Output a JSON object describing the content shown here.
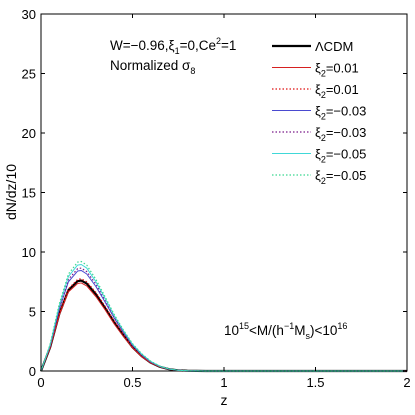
{
  "chart_data": {
    "type": "line",
    "xlabel": "z",
    "ylabel": "dN/dz/10",
    "xlim": [
      0,
      2
    ],
    "ylim": [
      0,
      30
    ],
    "x_ticks": [
      0,
      0.5,
      1,
      1.5,
      2
    ],
    "x_tick_labels": [
      "0",
      "0.5",
      "1",
      "1.5",
      "2"
    ],
    "y_ticks": [
      0,
      5,
      10,
      15,
      20,
      25,
      30
    ],
    "y_tick_labels": [
      "0",
      "5",
      "10",
      "15",
      "20",
      "25",
      "30"
    ],
    "grid": false,
    "legend_position": "top-right",
    "annotation_1": {
      "parts": [
        "W=−0.96,ξ",
        "1",
        "=0,Ce",
        "2",
        "=1"
      ]
    },
    "annotation_2": {
      "parts": [
        "Normalized σ",
        "8"
      ]
    },
    "annotation_3": {
      "parts": [
        "10",
        "15",
        "<M/(h",
        "−1",
        "M",
        "s",
        ")<10",
        "16"
      ]
    },
    "x": [
      0,
      0.05,
      0.1,
      0.15,
      0.2,
      0.22,
      0.25,
      0.3,
      0.35,
      0.4,
      0.45,
      0.5,
      0.55,
      0.6,
      0.65,
      0.7,
      0.75,
      0.8,
      0.9,
      1.0,
      1.2,
      1.5,
      2.0
    ],
    "series": [
      {
        "name": "ΛCDM",
        "color": "#000000",
        "style": "solid",
        "width": 2.2,
        "legend_parts": [
          "ΛCDM"
        ],
        "values": [
          0,
          2.0,
          4.8,
          6.8,
          7.55,
          7.6,
          7.35,
          6.45,
          5.3,
          4.1,
          3.0,
          2.0,
          1.25,
          0.7,
          0.35,
          0.15,
          0.06,
          0.02,
          0,
          0,
          0,
          0,
          0
        ]
      },
      {
        "name": "ξ2=0.01 solid",
        "color": "#d62020",
        "style": "solid",
        "width": 1,
        "legend_parts": [
          "ξ",
          "2",
          "=0.01"
        ],
        "values": [
          0,
          1.95,
          4.7,
          6.65,
          7.35,
          7.4,
          7.15,
          6.25,
          5.15,
          3.95,
          2.9,
          1.95,
          1.2,
          0.68,
          0.33,
          0.14,
          0.05,
          0.02,
          0,
          0,
          0,
          0,
          0
        ]
      },
      {
        "name": "ξ2=0.01 dotted",
        "color": "#e01010",
        "style": "dotted",
        "width": 1.2,
        "legend_parts": [
          "ξ",
          "2",
          "=0.01"
        ],
        "values": [
          0,
          2.0,
          4.85,
          6.9,
          7.7,
          7.75,
          7.5,
          6.6,
          5.45,
          4.2,
          3.1,
          2.05,
          1.3,
          0.72,
          0.36,
          0.15,
          0.06,
          0.02,
          0,
          0,
          0,
          0,
          0
        ]
      },
      {
        "name": "ξ2=−0.03 solid",
        "color": "#4a4ad0",
        "style": "solid",
        "width": 1,
        "legend_parts": [
          "ξ",
          "2",
          "=−0.03"
        ],
        "values": [
          0,
          2.1,
          5.2,
          7.5,
          8.4,
          8.45,
          8.15,
          7.1,
          5.8,
          4.45,
          3.25,
          2.15,
          1.35,
          0.75,
          0.37,
          0.16,
          0.06,
          0.02,
          0,
          0,
          0,
          0,
          0
        ]
      },
      {
        "name": "ξ2=−0.03 dotted",
        "color": "#7a1a8a",
        "style": "dotted",
        "width": 1.2,
        "legend_parts": [
          "ξ",
          "2",
          "=−0.03"
        ],
        "values": [
          0,
          2.15,
          5.3,
          7.7,
          8.6,
          8.65,
          8.35,
          7.3,
          5.95,
          4.55,
          3.3,
          2.2,
          1.4,
          0.78,
          0.38,
          0.16,
          0.06,
          0.02,
          0,
          0,
          0,
          0,
          0
        ]
      },
      {
        "name": "ξ2=−0.05 solid",
        "color": "#40d8d8",
        "style": "solid",
        "width": 1,
        "legend_parts": [
          "ξ",
          "2",
          "=−0.05"
        ],
        "values": [
          0,
          2.2,
          5.5,
          7.95,
          8.9,
          8.95,
          8.65,
          7.5,
          6.1,
          4.65,
          3.4,
          2.25,
          1.42,
          0.8,
          0.39,
          0.17,
          0.06,
          0.02,
          0,
          0,
          0,
          0,
          0
        ]
      },
      {
        "name": "ξ2=−0.05 dotted",
        "color": "#3ad890",
        "style": "dotted",
        "width": 1.2,
        "legend_parts": [
          "ξ",
          "2",
          "=−0.05"
        ],
        "values": [
          0,
          2.25,
          5.65,
          8.15,
          9.15,
          9.2,
          8.9,
          7.7,
          6.25,
          4.75,
          3.45,
          2.3,
          1.45,
          0.82,
          0.4,
          0.17,
          0.06,
          0.02,
          0,
          0,
          0,
          0,
          0
        ]
      }
    ]
  }
}
